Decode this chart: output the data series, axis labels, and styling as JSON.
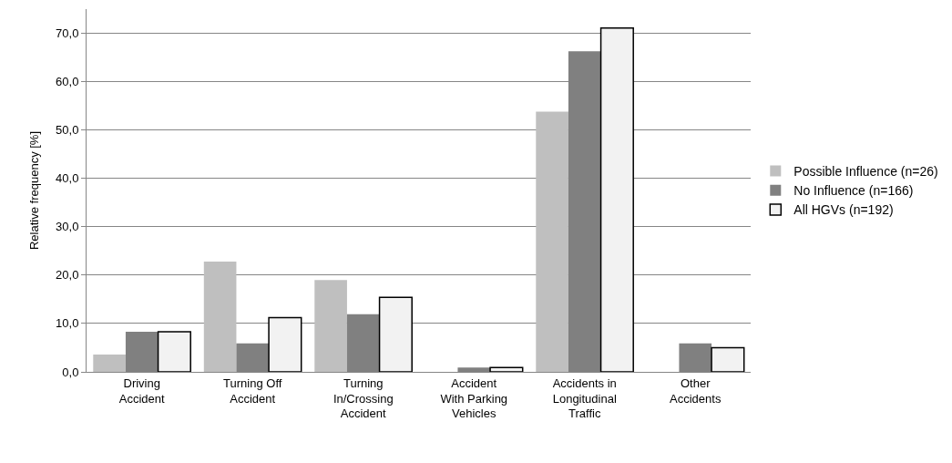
{
  "chart_data": {
    "type": "bar",
    "ylabel": "Relative frequency [%]",
    "categories": [
      "Driving\nAccident",
      "Turning Off\nAccident",
      "Turning\nIn/Crossing\nAccident",
      "Accident\nWith Parking\nVehicles",
      "Accidents in\nLongitudinal\nTraffic",
      "Other\nAccidents"
    ],
    "series": [
      {
        "name": "Possible Influence (n=26)",
        "color": "#bfbfbf",
        "values": [
          3.6,
          22.8,
          19.0,
          0.0,
          53.8,
          0.0
        ]
      },
      {
        "name": "No Influence (n=166)",
        "color": "#808080",
        "values": [
          8.3,
          5.9,
          11.9,
          0.9,
          66.3,
          5.9
        ]
      },
      {
        "name": "All HGVs (n=192)",
        "color": "#f2f2f2",
        "values": [
          8.3,
          11.2,
          15.4,
          0.9,
          71.1,
          5.0
        ]
      }
    ],
    "ylim": [
      0,
      75
    ],
    "yticks": [
      {
        "value": 0,
        "label": "0,0"
      },
      {
        "value": 10,
        "label": "10,0"
      },
      {
        "value": 20,
        "label": "20,0"
      },
      {
        "value": 30,
        "label": "30,0"
      },
      {
        "value": 40,
        "label": "40,0"
      },
      {
        "value": 50,
        "label": "50,0"
      },
      {
        "value": 60,
        "label": "60,0"
      },
      {
        "value": 70,
        "label": "70,0"
      }
    ],
    "grid": "y",
    "legend": "right"
  }
}
